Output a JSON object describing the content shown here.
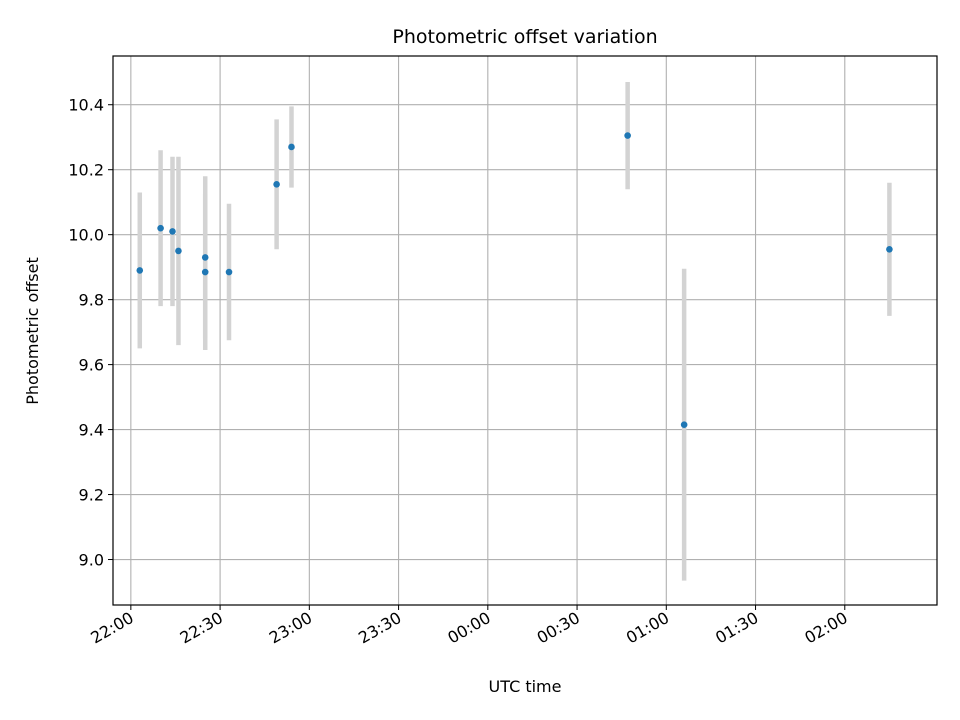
{
  "chart_data": {
    "type": "scatter",
    "title": "Photometric offset variation",
    "xlabel": "UTC time",
    "ylabel": "Photometric offset",
    "grid": true,
    "x_ticks": [
      {
        "t": "22:00",
        "label": "22:00"
      },
      {
        "t": "22:30",
        "label": "22:30"
      },
      {
        "t": "23:00",
        "label": "23:00"
      },
      {
        "t": "23:30",
        "label": "23:30"
      },
      {
        "t": "00:00",
        "label": "00:00"
      },
      {
        "t": "00:30",
        "label": "00:30"
      },
      {
        "t": "01:00",
        "label": "01:00"
      },
      {
        "t": "01:30",
        "label": "01:30"
      },
      {
        "t": "02:00",
        "label": "02:00"
      }
    ],
    "y_ticks": [
      9.0,
      9.2,
      9.4,
      9.6,
      9.8,
      10.0,
      10.2,
      10.4
    ],
    "xlim": [
      "21:54",
      "02:31"
    ],
    "ylim": [
      8.86,
      10.55
    ],
    "marker_color": "#1f77b4",
    "errorbar_color": "#d3d3d3",
    "points": [
      {
        "t": "22:03",
        "y": 9.89,
        "err": 0.24
      },
      {
        "t": "22:10",
        "y": 10.02,
        "err": 0.24
      },
      {
        "t": "22:14",
        "y": 10.01,
        "err": 0.23
      },
      {
        "t": "22:16",
        "y": 9.95,
        "err": 0.29
      },
      {
        "t": "22:25",
        "y": 9.93,
        "err": 0.25
      },
      {
        "t": "22:25",
        "y": 9.885,
        "err": 0.24
      },
      {
        "t": "22:33",
        "y": 9.885,
        "err": 0.21
      },
      {
        "t": "22:49",
        "y": 10.155,
        "err": 0.2
      },
      {
        "t": "22:54",
        "y": 10.27,
        "err": 0.125
      },
      {
        "t": "00:47",
        "y": 10.305,
        "err": 0.165
      },
      {
        "t": "01:06",
        "y": 9.415,
        "err": 0.48
      },
      {
        "t": "02:15",
        "y": 9.955,
        "err": 0.205
      }
    ]
  }
}
